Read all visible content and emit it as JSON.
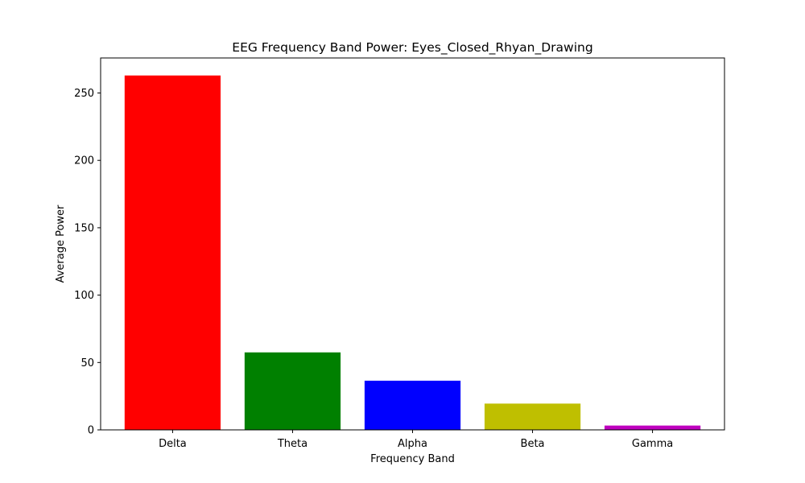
{
  "chart_data": {
    "type": "bar",
    "title": "EEG Frequency Band Power: Eyes_Closed_Rhyan_Drawing",
    "xlabel": "Frequency Band",
    "ylabel": "Average Power",
    "categories": [
      "Delta",
      "Theta",
      "Alpha",
      "Beta",
      "Gamma"
    ],
    "values": [
      263,
      57.5,
      36.5,
      19.5,
      3.2
    ],
    "colors": [
      "#ff0000",
      "#008000",
      "#0000ff",
      "#bfbf00",
      "#bf00bf"
    ],
    "ylim": [
      0,
      276
    ],
    "yticks": [
      0,
      50,
      100,
      150,
      200,
      250
    ],
    "ytick_labels": [
      "0",
      "50",
      "100",
      "150",
      "200",
      "250"
    ],
    "grid": false,
    "legend": "none"
  }
}
